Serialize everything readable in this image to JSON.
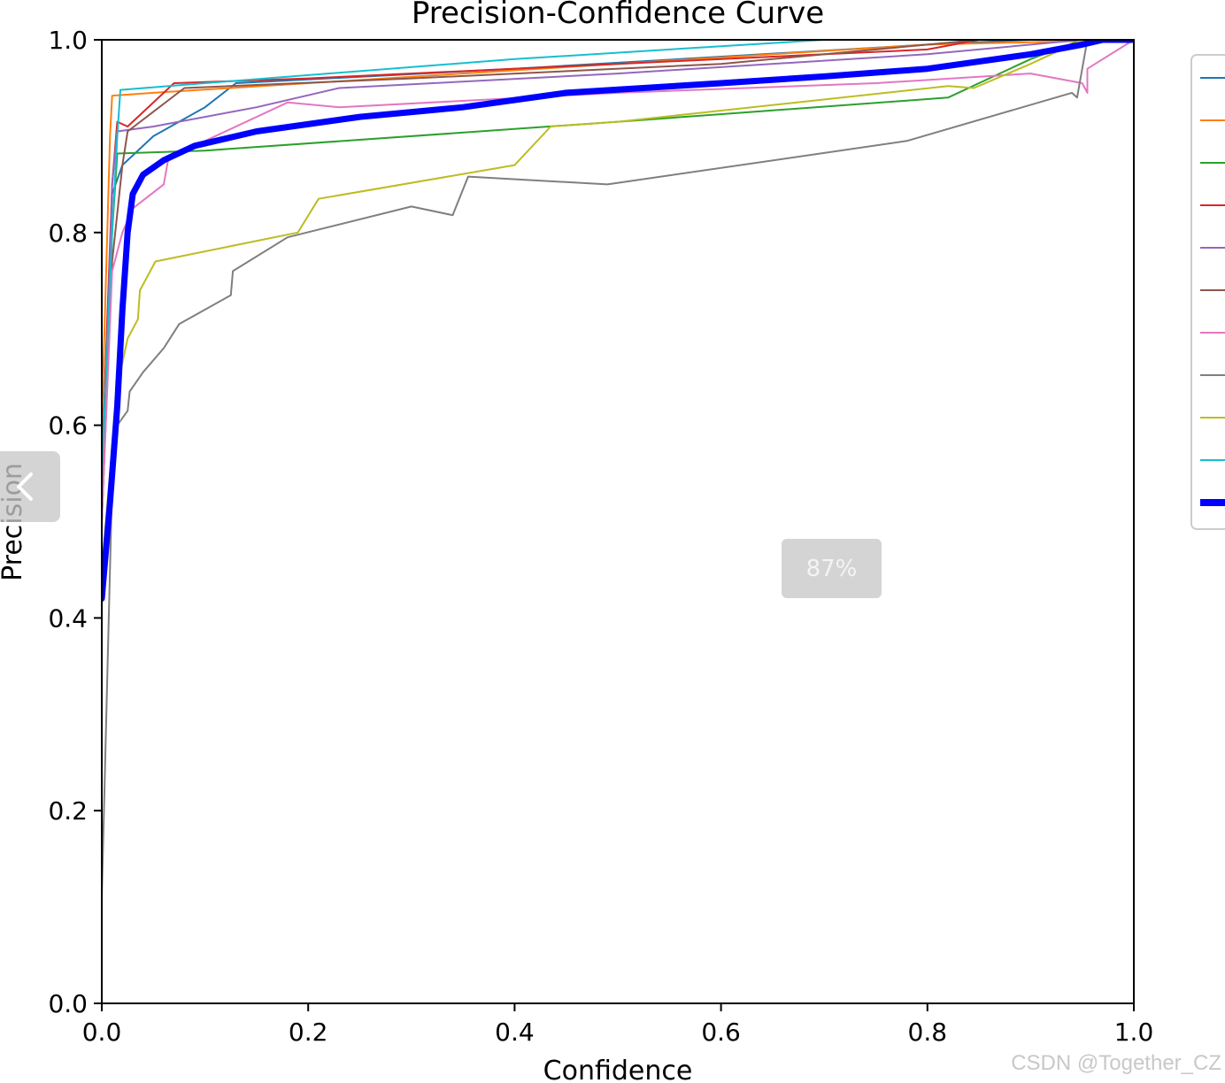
{
  "chart_data": {
    "type": "line",
    "title": "Precision-Confidence Curve",
    "xlabel": "Confidence",
    "ylabel": "Precision",
    "xlim": [
      0,
      1
    ],
    "ylim": [
      0,
      1
    ],
    "x_ticks": [
      "0.0",
      "0.2",
      "0.4",
      "0.6",
      "0.8",
      "1.0"
    ],
    "y_ticks": [
      "0.0",
      "0.2",
      "0.4",
      "0.6",
      "0.8",
      "1.0"
    ],
    "grid": false,
    "legend_placement": "right, clipped",
    "series": [
      {
        "color": "#1f77b4",
        "width": 2,
        "points": [
          [
            0,
            0.55
          ],
          [
            0.01,
            0.84
          ],
          [
            0.02,
            0.87
          ],
          [
            0.05,
            0.9
          ],
          [
            0.1,
            0.93
          ],
          [
            0.13,
            0.955
          ],
          [
            0.4,
            0.97
          ],
          [
            0.8,
            0.995
          ],
          [
            0.9,
            1.0
          ],
          [
            1.0,
            1.0
          ]
        ]
      },
      {
        "color": "#ff7f0e",
        "width": 2,
        "points": [
          [
            0,
            0.6
          ],
          [
            0.008,
            0.9
          ],
          [
            0.01,
            0.942
          ],
          [
            0.05,
            0.945
          ],
          [
            0.2,
            0.955
          ],
          [
            0.5,
            0.975
          ],
          [
            0.8,
            0.995
          ],
          [
            1.0,
            1.0
          ]
        ]
      },
      {
        "color": "#2ca02c",
        "width": 2,
        "points": [
          [
            0,
            0.5
          ],
          [
            0.01,
            0.8
          ],
          [
            0.015,
            0.882
          ],
          [
            0.1,
            0.885
          ],
          [
            0.5,
            0.915
          ],
          [
            0.82,
            0.94
          ],
          [
            0.9,
            0.98
          ],
          [
            0.95,
            1.0
          ],
          [
            1.0,
            1.0
          ]
        ]
      },
      {
        "color": "#d62728",
        "width": 2,
        "points": [
          [
            0,
            0.55
          ],
          [
            0.01,
            0.85
          ],
          [
            0.015,
            0.915
          ],
          [
            0.025,
            0.91
          ],
          [
            0.07,
            0.955
          ],
          [
            0.2,
            0.96
          ],
          [
            0.5,
            0.975
          ],
          [
            0.8,
            0.99
          ],
          [
            0.85,
            1.0
          ],
          [
            1.0,
            1.0
          ]
        ]
      },
      {
        "color": "#9467bd",
        "width": 2,
        "points": [
          [
            0,
            0.5
          ],
          [
            0.01,
            0.85
          ],
          [
            0.015,
            0.905
          ],
          [
            0.05,
            0.91
          ],
          [
            0.15,
            0.93
          ],
          [
            0.23,
            0.95
          ],
          [
            0.5,
            0.965
          ],
          [
            0.8,
            0.985
          ],
          [
            0.95,
            1.0
          ],
          [
            1.0,
            1.0
          ]
        ]
      },
      {
        "color": "#8c564b",
        "width": 2,
        "points": [
          [
            0,
            0.5
          ],
          [
            0.01,
            0.77
          ],
          [
            0.02,
            0.87
          ],
          [
            0.025,
            0.905
          ],
          [
            0.08,
            0.95
          ],
          [
            0.3,
            0.96
          ],
          [
            0.6,
            0.975
          ],
          [
            0.85,
            1.0
          ],
          [
            1.0,
            1.0
          ]
        ]
      },
      {
        "color": "#e377c2",
        "width": 2,
        "points": [
          [
            0,
            0.5
          ],
          [
            0.01,
            0.76
          ],
          [
            0.02,
            0.8
          ],
          [
            0.03,
            0.825
          ],
          [
            0.06,
            0.85
          ],
          [
            0.065,
            0.88
          ],
          [
            0.1,
            0.895
          ],
          [
            0.18,
            0.935
          ],
          [
            0.23,
            0.93
          ],
          [
            0.5,
            0.945
          ],
          [
            0.75,
            0.955
          ],
          [
            0.9,
            0.965
          ],
          [
            0.95,
            0.955
          ],
          [
            0.955,
            0.945
          ],
          [
            0.955,
            0.97
          ],
          [
            1.0,
            1.0
          ]
        ]
      },
      {
        "color": "#7f7f7f",
        "width": 2,
        "points": [
          [
            0,
            0.11
          ],
          [
            0.01,
            0.54
          ],
          [
            0.015,
            0.6
          ],
          [
            0.025,
            0.615
          ],
          [
            0.027,
            0.635
          ],
          [
            0.04,
            0.655
          ],
          [
            0.06,
            0.68
          ],
          [
            0.075,
            0.705
          ],
          [
            0.125,
            0.735
          ],
          [
            0.127,
            0.76
          ],
          [
            0.18,
            0.795
          ],
          [
            0.3,
            0.827
          ],
          [
            0.34,
            0.818
          ],
          [
            0.355,
            0.858
          ],
          [
            0.49,
            0.85
          ],
          [
            0.78,
            0.895
          ],
          [
            0.94,
            0.945
          ],
          [
            0.945,
            0.94
          ],
          [
            0.955,
            1.0
          ],
          [
            1.0,
            1.0
          ]
        ]
      },
      {
        "color": "#bcbd22",
        "width": 2,
        "points": [
          [
            0,
            0.45
          ],
          [
            0.015,
            0.64
          ],
          [
            0.02,
            0.665
          ],
          [
            0.025,
            0.69
          ],
          [
            0.035,
            0.71
          ],
          [
            0.037,
            0.74
          ],
          [
            0.052,
            0.77
          ],
          [
            0.19,
            0.8
          ],
          [
            0.21,
            0.835
          ],
          [
            0.4,
            0.87
          ],
          [
            0.435,
            0.91
          ],
          [
            0.5,
            0.915
          ],
          [
            0.82,
            0.952
          ],
          [
            0.845,
            0.95
          ],
          [
            0.9,
            0.975
          ],
          [
            0.95,
            1.0
          ],
          [
            1.0,
            1.0
          ]
        ]
      },
      {
        "color": "#17becf",
        "width": 2,
        "points": [
          [
            0,
            0.55
          ],
          [
            0.01,
            0.8
          ],
          [
            0.015,
            0.9
          ],
          [
            0.018,
            0.948
          ],
          [
            0.1,
            0.955
          ],
          [
            0.4,
            0.98
          ],
          [
            0.7,
            1.0
          ],
          [
            1.0,
            1.0
          ]
        ]
      },
      {
        "color": "#0000ff",
        "width": 7,
        "points": [
          [
            0.0,
            0.42
          ],
          [
            0.008,
            0.52
          ],
          [
            0.015,
            0.62
          ],
          [
            0.02,
            0.72
          ],
          [
            0.025,
            0.8
          ],
          [
            0.03,
            0.84
          ],
          [
            0.04,
            0.86
          ],
          [
            0.06,
            0.875
          ],
          [
            0.09,
            0.89
          ],
          [
            0.15,
            0.905
          ],
          [
            0.25,
            0.92
          ],
          [
            0.35,
            0.93
          ],
          [
            0.45,
            0.945
          ],
          [
            0.6,
            0.955
          ],
          [
            0.7,
            0.962
          ],
          [
            0.8,
            0.97
          ],
          [
            0.9,
            0.985
          ],
          [
            0.95,
            0.995
          ],
          [
            0.97,
            1.0
          ],
          [
            1.0,
            1.0
          ]
        ]
      }
    ]
  },
  "overlay": {
    "zoom_level": "87%",
    "prev_icon": "chevron-left-icon"
  },
  "watermark": "CSDN @Together_CZ"
}
